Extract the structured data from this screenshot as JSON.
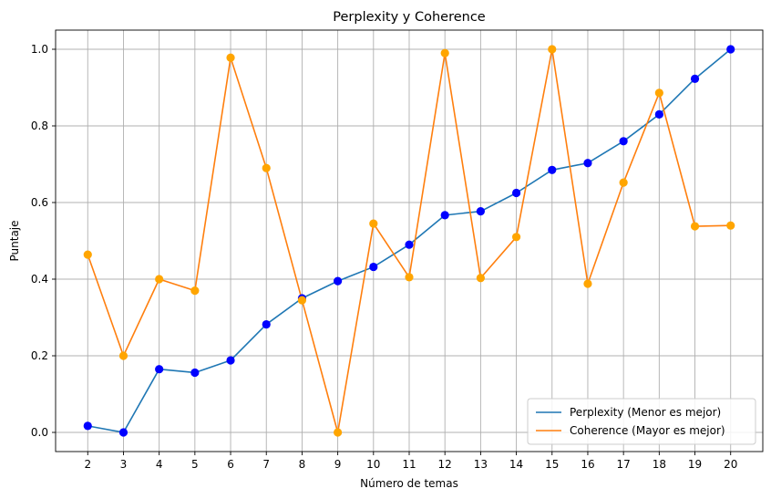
{
  "chart_data": {
    "type": "line",
    "title": "Perplexity y Coherence",
    "xlabel": "Número de temas",
    "ylabel": "Puntaje",
    "x": [
      2,
      3,
      4,
      5,
      6,
      7,
      8,
      9,
      10,
      11,
      12,
      13,
      14,
      15,
      16,
      17,
      18,
      19,
      20
    ],
    "xlim": [
      1.1,
      20.9
    ],
    "ylim": [
      -0.05,
      1.05
    ],
    "yticks": [
      0.0,
      0.2,
      0.4,
      0.6,
      0.8,
      1.0
    ],
    "ytick_labels": [
      "0.0",
      "0.2",
      "0.4",
      "0.6",
      "0.8",
      "1.0"
    ],
    "grid": true,
    "legend_position": "lower-right",
    "series": [
      {
        "name": "Perplexity (Menor es mejor)",
        "line_color": "#1f77b4",
        "marker_color": "#0000ff",
        "values": [
          0.017,
          0.0,
          0.165,
          0.156,
          0.188,
          0.282,
          0.35,
          0.395,
          0.432,
          0.49,
          0.567,
          0.577,
          0.625,
          0.685,
          0.703,
          0.76,
          0.83,
          0.923,
          1.0
        ]
      },
      {
        "name": "Coherence (Mayor es mejor)",
        "line_color": "#ff7f0e",
        "marker_color": "#ffa500",
        "values": [
          0.464,
          0.2,
          0.4,
          0.37,
          0.978,
          0.69,
          0.345,
          0.0,
          0.545,
          0.405,
          0.99,
          0.403,
          0.51,
          1.0,
          0.388,
          0.652,
          0.886,
          0.538,
          0.54
        ]
      }
    ]
  }
}
